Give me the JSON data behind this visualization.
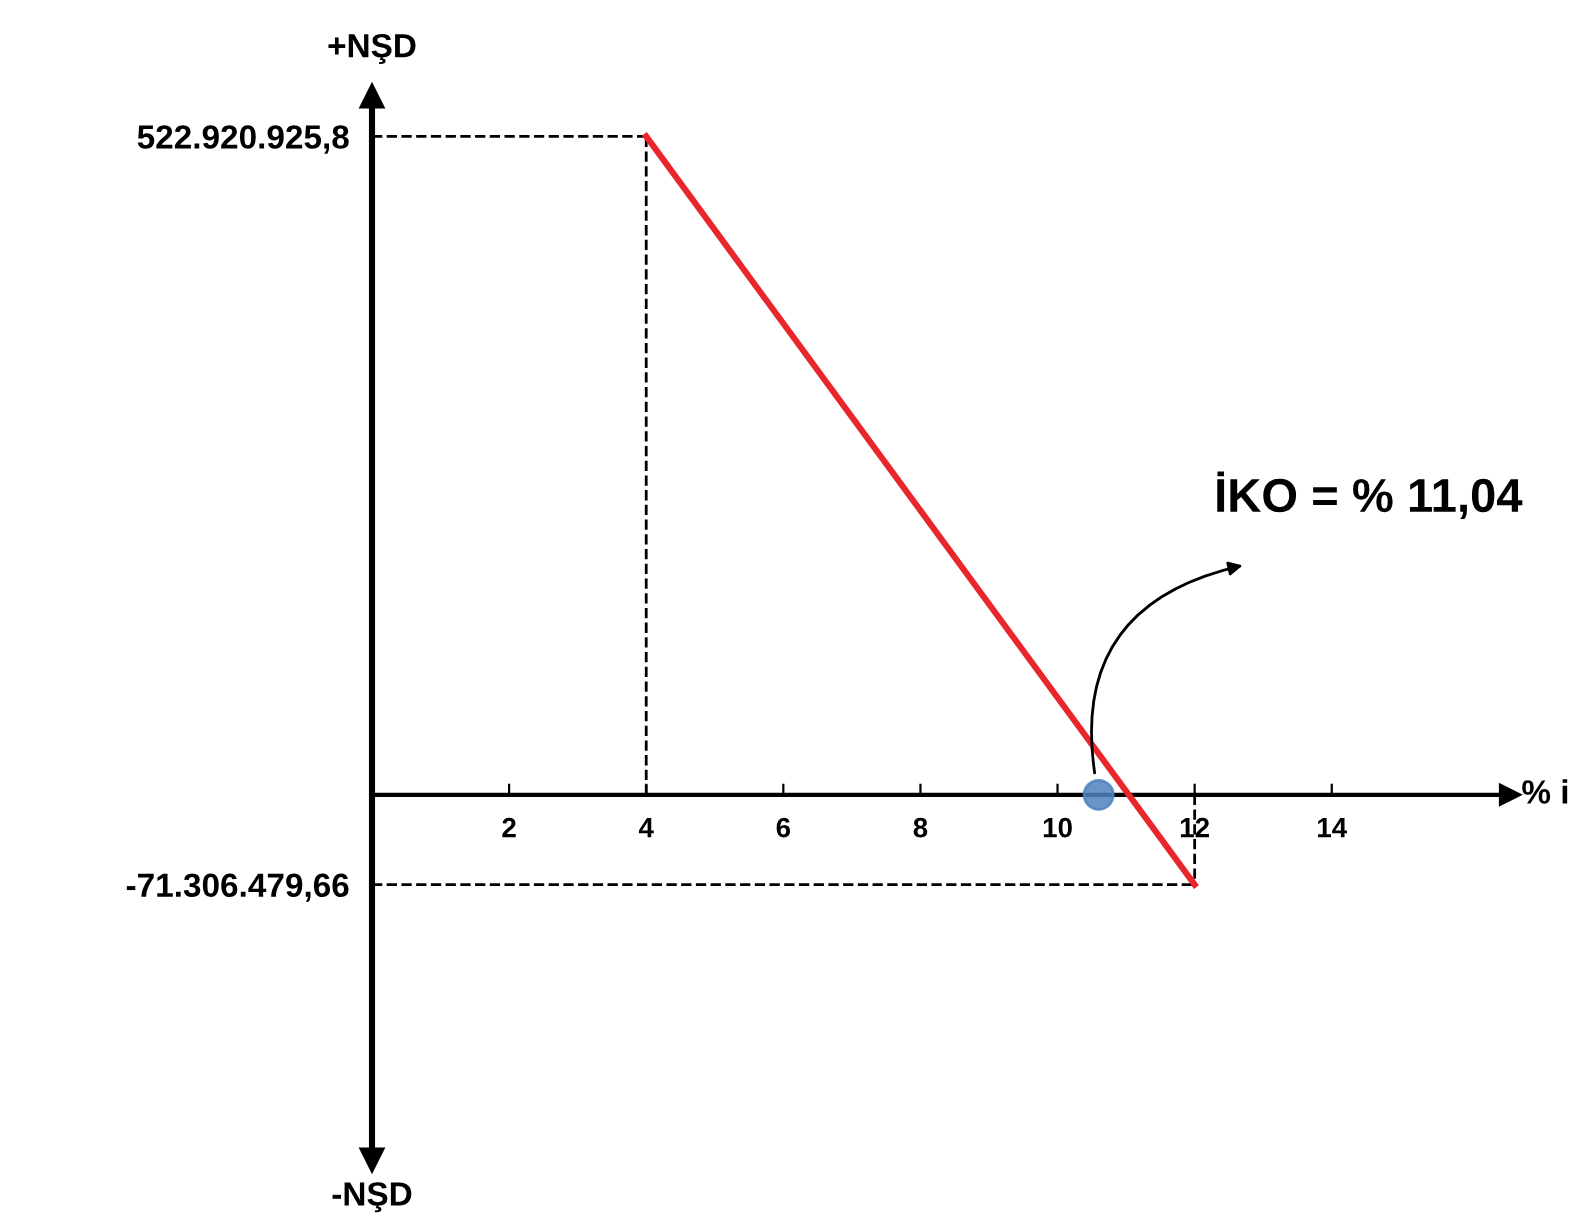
{
  "chart_data": {
    "type": "line",
    "ylabel": "+NŞD",
    "xlabel": "% i",
    "series": [
      {
        "color": "#e8262b",
        "x": [
          4,
          12
        ],
        "values": [
          522920925.8,
          -71306479.66
        ]
      },
      {
        "type": "scatter",
        "color": "#4f81bd",
        "x": [
          10.6
        ],
        "values": [
          0
        ],
        "marker": "circle"
      }
    ],
    "xlim": [
      0,
      16.6
    ],
    "xticks": [
      2,
      4,
      6,
      8,
      10,
      12,
      14
    ],
    "ylim": [
      -290000000,
      555000000
    ],
    "yticks": [
      {
        "value": 522920925.8,
        "label": "522.920.925,8"
      },
      {
        "value": -71306479.66,
        "label": "-71.306.479,66"
      }
    ],
    "ref_lines": [
      {
        "axis": "y",
        "value": 522920925.8,
        "color": "#000000",
        "line_style": "dashed"
      },
      {
        "axis": "x",
        "value": 4,
        "color": "#000000",
        "line_style": "dashed"
      },
      {
        "axis": "y",
        "value": -71306479.66,
        "color": "#000000",
        "line_style": "dashed"
      },
      {
        "axis": "x",
        "value": 12,
        "color": "#000000",
        "line_style": "dashed"
      }
    ],
    "annotations": [
      "İKO = % 11,04",
      "-NŞD"
    ],
    "grid": false,
    "legend": false,
    "line_style": "solid"
  }
}
